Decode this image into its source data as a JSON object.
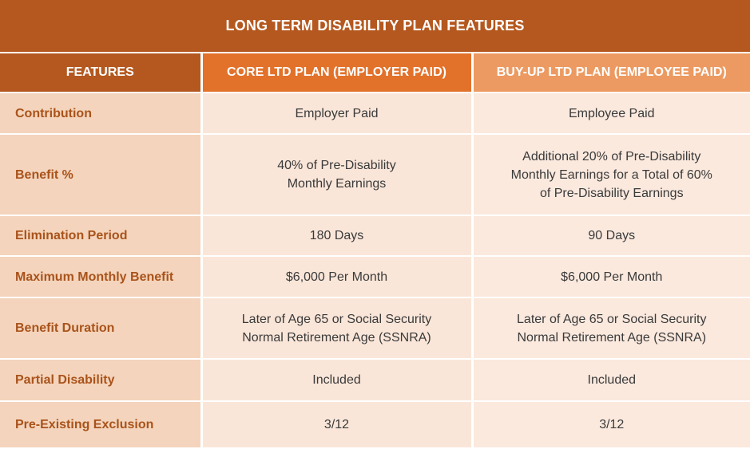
{
  "title": "LONG TERM DISABILITY PLAN FEATURES",
  "headers": {
    "features": "FEATURES",
    "core": "CORE LTD PLAN (EMPLOYER PAID)",
    "buyup": "BUY-UP LTD PLAN (EMPLOYEE PAID)"
  },
  "rows": [
    {
      "feature": "Contribution",
      "core": "Employer Paid",
      "buyup": "Employee Paid"
    },
    {
      "feature": "Benefit %",
      "core": "40% of Pre-Disability\nMonthly Earnings",
      "buyup": "Additional 20% of Pre-Disability\nMonthly Earnings for a Total of 60%\nof Pre-Disability Earnings"
    },
    {
      "feature": "Elimination Period",
      "core": "180 Days",
      "buyup": "90 Days"
    },
    {
      "feature": "Maximum Monthly Benefit",
      "core": "$6,000 Per Month",
      "buyup": "$6,000 Per Month"
    },
    {
      "feature": "Benefit Duration",
      "core": "Later of Age 65 or Social Security\nNormal Retirement Age (SSNRA)",
      "buyup": "Later of Age 65 or Social Security\nNormal Retirement Age (SSNRA)"
    },
    {
      "feature": "Partial Disability",
      "core": "Included",
      "buyup": "Included"
    },
    {
      "feature": "Pre-Existing Exclusion",
      "core": "3/12",
      "buyup": "3/12"
    }
  ],
  "colors": {
    "title_bg": "#b4581f",
    "header_features_bg": "#b4581f",
    "header_core_bg": "#e2712a",
    "header_buyup_bg": "#ec9a61",
    "label_bg": "#f4d4bc",
    "label_text": "#a9531b",
    "core_bg": "#fae6d9",
    "buyup_bg": "#fbe9de"
  }
}
